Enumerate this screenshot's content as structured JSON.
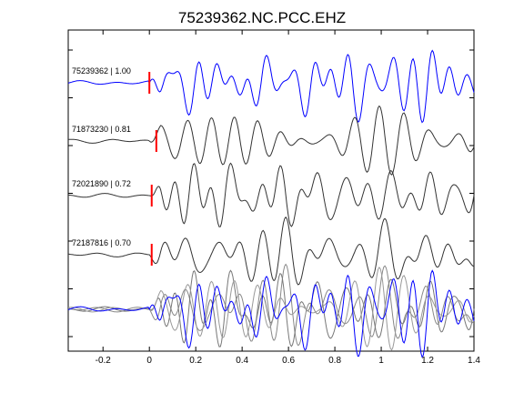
{
  "chart_data": {
    "type": "line",
    "title": "75239362.NC.PCC.EHZ",
    "xlabel": "",
    "ylabel": "",
    "xlim": [
      -0.35,
      1.4
    ],
    "x_ticks": [
      -0.2,
      0,
      0.2,
      0.4,
      0.6,
      0.8,
      1,
      1.2,
      1.4
    ],
    "x_tick_labels": [
      "-0.2",
      "0",
      "0.2",
      "0.4",
      "0.6",
      "0.8",
      "1",
      "1.2",
      "1.4"
    ],
    "pick_time": 0,
    "traces": [
      {
        "label": "75239362 | 1.00",
        "event_id": "75239362",
        "correlation": 1.0,
        "color": "#0000ff",
        "pick_offset": 0.0,
        "seed": 1
      },
      {
        "label": "71873230 | 0.81",
        "event_id": "71873230",
        "correlation": 0.81,
        "color": "#333333",
        "pick_offset": 0.03,
        "seed": 2
      },
      {
        "label": "72021890 | 0.72",
        "event_id": "72021890",
        "correlation": 0.72,
        "color": "#333333",
        "pick_offset": 0.01,
        "seed": 3
      },
      {
        "label": "72187816 | 0.70",
        "event_id": "72187816",
        "correlation": 0.7,
        "color": "#333333",
        "pick_offset": 0.01,
        "seed": 4
      }
    ],
    "overlay_colors": [
      "#888888",
      "#777777",
      "#999999",
      "#0000ff"
    ],
    "pick_marker_color": "#ff0000"
  }
}
